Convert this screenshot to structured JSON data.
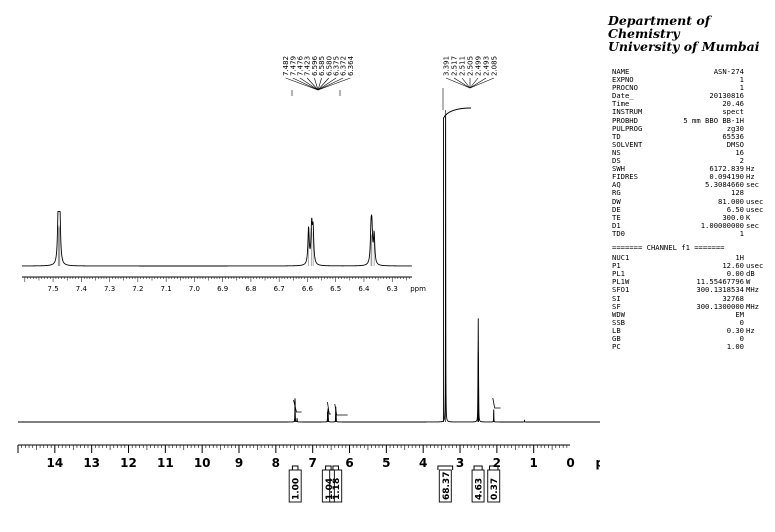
{
  "header": {
    "line1": "Department of Chemistry",
    "line2": "University of Mumbai"
  },
  "acquisition_parameters": [
    {
      "name": "NAME",
      "value": "ASN-274",
      "unit": ""
    },
    {
      "name": "EXPNO",
      "value": "1",
      "unit": ""
    },
    {
      "name": "PROCNO",
      "value": "1",
      "unit": ""
    },
    {
      "name": "Date_",
      "value": "20130816",
      "unit": ""
    },
    {
      "name": "Time",
      "value": "20.46",
      "unit": ""
    },
    {
      "name": "INSTRUM",
      "value": "spect",
      "unit": ""
    },
    {
      "name": "PROBHD",
      "value": "5 mm BBO BB-1H",
      "unit": ""
    },
    {
      "name": "PULPROG",
      "value": "zg30",
      "unit": ""
    },
    {
      "name": "TD",
      "value": "65536",
      "unit": ""
    },
    {
      "name": "SOLVENT",
      "value": "DMSO",
      "unit": ""
    },
    {
      "name": "NS",
      "value": "16",
      "unit": ""
    },
    {
      "name": "DS",
      "value": "2",
      "unit": ""
    },
    {
      "name": "SWH",
      "value": "6172.839",
      "unit": "Hz"
    },
    {
      "name": "FIDRES",
      "value": "0.094190",
      "unit": "Hz"
    },
    {
      "name": "AQ",
      "value": "5.3084660",
      "unit": "sec"
    },
    {
      "name": "RG",
      "value": "128",
      "unit": ""
    },
    {
      "name": "DW",
      "value": "81.000",
      "unit": "usec"
    },
    {
      "name": "DE",
      "value": "6.50",
      "unit": "usec"
    },
    {
      "name": "TE",
      "value": "300.0",
      "unit": "K"
    },
    {
      "name": "D1",
      "value": "1.00000000",
      "unit": "sec"
    },
    {
      "name": "TD0",
      "value": "1",
      "unit": ""
    }
  ],
  "channel_separator": "======= CHANNEL f1 =======",
  "channel_parameters": [
    {
      "name": "NUC1",
      "value": "1H",
      "unit": ""
    },
    {
      "name": "P1",
      "value": "12.60",
      "unit": "usec"
    },
    {
      "name": "PL1",
      "value": "0.00",
      "unit": "dB"
    },
    {
      "name": "PL1W",
      "value": "11.55467796",
      "unit": "W"
    },
    {
      "name": "SFO1",
      "value": "300.1318534",
      "unit": "MHz"
    },
    {
      "name": "SI",
      "value": "32768",
      "unit": ""
    },
    {
      "name": "SF",
      "value": "300.1300000",
      "unit": "MHz"
    },
    {
      "name": "WDW",
      "value": "EM",
      "unit": ""
    },
    {
      "name": "SSB",
      "value": "0",
      "unit": ""
    },
    {
      "name": "LB",
      "value": "0.30",
      "unit": "Hz"
    },
    {
      "name": "GB",
      "value": "0",
      "unit": ""
    },
    {
      "name": "PC",
      "value": "1.00",
      "unit": ""
    }
  ],
  "chart_data": {
    "type": "line",
    "xlabel": "ppm",
    "main_axis": {
      "xlim": [
        15,
        -0.8
      ],
      "reversed": true,
      "tick_labels": [
        "14",
        "13",
        "12",
        "11",
        "10",
        "9",
        "8",
        "7",
        "6",
        "5",
        "4",
        "3",
        "2",
        "1",
        "0"
      ],
      "tick_values": [
        14,
        13,
        12,
        11,
        10,
        9,
        8,
        7,
        6,
        5,
        4,
        3,
        2,
        1,
        0
      ]
    },
    "inset_axis": {
      "xlim": [
        7.61,
        6.23
      ],
      "reversed": true,
      "xlabel": "ppm",
      "tick_labels": [
        "7.5",
        "7.4",
        "7.3",
        "7.2",
        "7.1",
        "7.0",
        "6.9",
        "6.8",
        "6.7",
        "6.6",
        "6.5",
        "6.4",
        "6.3"
      ],
      "tick_values": [
        7.5,
        7.4,
        7.3,
        7.2,
        7.1,
        7.0,
        6.9,
        6.8,
        6.7,
        6.6,
        6.5,
        6.4,
        6.3
      ]
    },
    "peaks": [
      {
        "ppm": 7.482,
        "height": 0.035
      },
      {
        "ppm": 7.479,
        "height": 0.036
      },
      {
        "ppm": 7.476,
        "height": 0.034
      },
      {
        "ppm": 7.423,
        "height": 0.012
      },
      {
        "ppm": 6.596,
        "height": 0.03
      },
      {
        "ppm": 6.585,
        "height": 0.031
      },
      {
        "ppm": 6.58,
        "height": 0.029
      },
      {
        "ppm": 6.375,
        "height": 0.026
      },
      {
        "ppm": 6.372,
        "height": 0.028
      },
      {
        "ppm": 6.364,
        "height": 0.026
      },
      {
        "ppm": 3.391,
        "height": 1.0
      },
      {
        "ppm": 2.517,
        "height": 0.04
      },
      {
        "ppm": 2.511,
        "height": 0.13
      },
      {
        "ppm": 2.505,
        "height": 0.26
      },
      {
        "ppm": 2.499,
        "height": 0.13
      },
      {
        "ppm": 2.493,
        "height": 0.04
      },
      {
        "ppm": 2.085,
        "height": 0.04
      },
      {
        "ppm": 1.25,
        "height": 0.005
      }
    ],
    "inset_peaks": [
      {
        "ppm": 7.482,
        "height": 0.94
      },
      {
        "ppm": 7.479,
        "height": 0.98
      },
      {
        "ppm": 7.476,
        "height": 0.92
      },
      {
        "ppm": 6.596,
        "height": 0.86
      },
      {
        "ppm": 6.585,
        "height": 0.9
      },
      {
        "ppm": 6.58,
        "height": 0.8
      },
      {
        "ppm": 6.375,
        "height": 0.72
      },
      {
        "ppm": 6.372,
        "height": 0.76
      },
      {
        "ppm": 6.364,
        "height": 0.7
      }
    ],
    "peak_labels_group1": [
      "7.482",
      "7.479",
      "7.476",
      "7.423",
      "6.596",
      "6.585",
      "6.580",
      "6.375",
      "6.372",
      "6.364"
    ],
    "peak_labels_group2": [
      "3.391",
      "2.517",
      "2.511",
      "2.505",
      "2.499",
      "2.493",
      "2.085"
    ],
    "integrals": [
      {
        "from": 7.55,
        "to": 7.4,
        "value": "1.00"
      },
      {
        "from": 6.65,
        "to": 6.5,
        "value": "1.04"
      },
      {
        "from": 6.45,
        "to": 6.3,
        "value": "1.18"
      },
      {
        "from": 3.6,
        "to": 3.2,
        "value": "68.37"
      },
      {
        "from": 2.62,
        "to": 2.4,
        "value": "4.63"
      },
      {
        "from": 2.2,
        "to": 1.97,
        "value": "0.37"
      }
    ]
  }
}
